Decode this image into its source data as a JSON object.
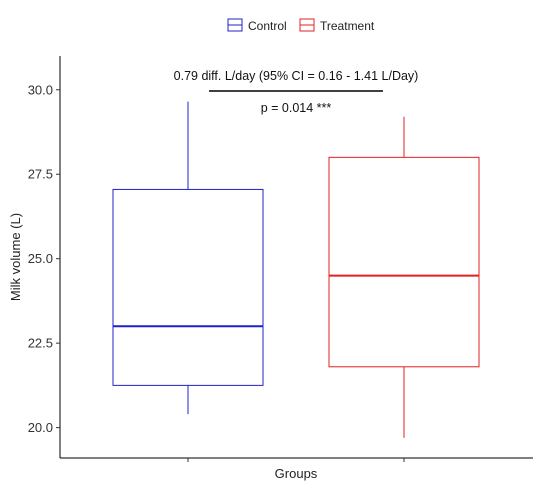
{
  "chart_data": {
    "type": "box",
    "xlabel": "Groups",
    "ylabel": "Milk volume (L)",
    "ylim": [
      19.1,
      31.0
    ],
    "yticks": [
      20.0,
      22.5,
      25.0,
      27.5,
      30.0
    ],
    "ytick_labels": [
      "20.0",
      "22.5",
      "25.0",
      "27.5",
      "30.0"
    ],
    "grid": false,
    "legend": {
      "placement": "top",
      "entries": [
        {
          "name": "Control",
          "color": "#2020c8"
        },
        {
          "name": "Treatment",
          "color": "#e02020"
        }
      ]
    },
    "series": [
      {
        "name": "Control",
        "color": "#2020c8",
        "min": 20.4,
        "q1": 21.25,
        "median": 23.0,
        "q3": 27.05,
        "max": 29.65
      },
      {
        "name": "Treatment",
        "color": "#e02020",
        "min": 19.7,
        "q1": 21.8,
        "median": 24.5,
        "q3": 28.0,
        "max": 29.2
      }
    ],
    "annotations": {
      "diff_text": "0.79  diff. L/day (95% CI = 0.16 - 1.41 L/Day)",
      "p_text": "p =  0.014 ***"
    }
  }
}
